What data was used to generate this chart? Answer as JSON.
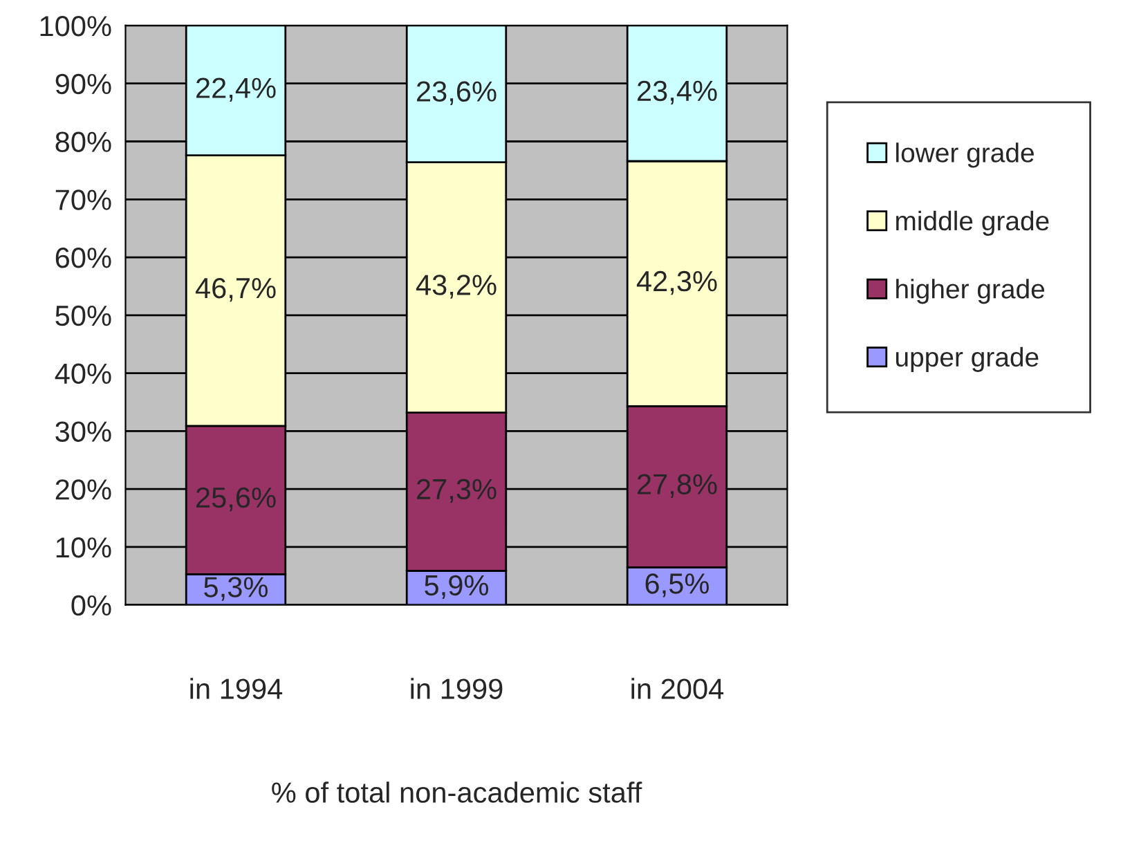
{
  "chart_data": {
    "type": "bar",
    "stacked": true,
    "xlabel": "% of total non-academic staff",
    "categories": [
      "in 1994",
      "in 1999",
      "in 2004"
    ],
    "series": [
      {
        "name": "upper grade",
        "color": "#9999ff",
        "values": [
          5.3,
          5.9,
          6.5
        ],
        "value_labels": [
          "5,3%",
          "5,9%",
          "6,5%"
        ]
      },
      {
        "name": "higher grade",
        "color": "#993366",
        "values": [
          25.6,
          27.3,
          27.8
        ],
        "value_labels": [
          "25,6%",
          "27,3%",
          "27,8%"
        ]
      },
      {
        "name": "middle grade",
        "color": "#ffffcc",
        "values": [
          46.7,
          43.2,
          42.3
        ],
        "value_labels": [
          "46,7%",
          "43,2%",
          "42,3%"
        ]
      },
      {
        "name": "lower grade",
        "color": "#ccffff",
        "values": [
          22.4,
          23.6,
          23.4
        ],
        "value_labels": [
          "22,4%",
          "23,6%",
          "23,4%"
        ]
      }
    ],
    "ylim": [
      0,
      100
    ],
    "yticks": [
      {
        "value": 0,
        "label": "0%"
      },
      {
        "value": 10,
        "label": "10%"
      },
      {
        "value": 20,
        "label": "20%"
      },
      {
        "value": 30,
        "label": "30%"
      },
      {
        "value": 40,
        "label": "40%"
      },
      {
        "value": 50,
        "label": "50%"
      },
      {
        "value": 60,
        "label": "60%"
      },
      {
        "value": 70,
        "label": "70%"
      },
      {
        "value": 80,
        "label": "80%"
      },
      {
        "value": 90,
        "label": "90%"
      },
      {
        "value": 100,
        "label": "100%"
      }
    ],
    "grid": "y",
    "legend": "right"
  }
}
